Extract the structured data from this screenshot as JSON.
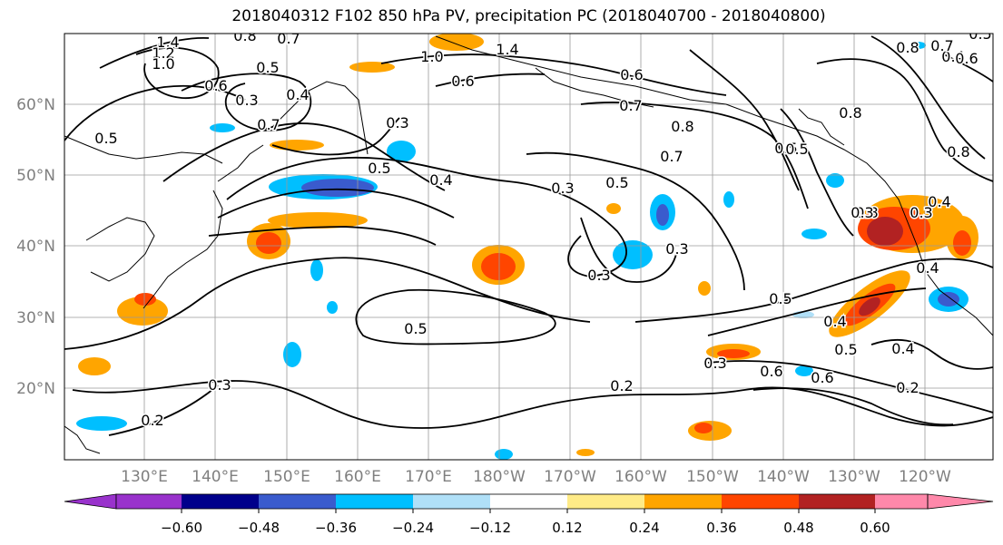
{
  "title": "2018040312 F102 850 hPa PV, precipitation PC (2018040700 - 2018040800)",
  "map": {
    "lon_labels": [
      "130°E",
      "140°E",
      "150°E",
      "160°E",
      "170°E",
      "180°W",
      "170°W",
      "160°W",
      "150°W",
      "140°W",
      "130°W",
      "120°W"
    ],
    "lat_labels": [
      "60°N",
      "50°N",
      "40°N",
      "30°N",
      "20°N"
    ],
    "contour_labels": [
      "1.4",
      "1.2",
      "1.0",
      "0.8",
      "0.7",
      "0.5",
      "0.3",
      "0.4",
      "0.7",
      "0.6",
      "0.5",
      "0.5",
      "0.4",
      "0.3",
      "0.5",
      "0.3",
      "0.3",
      "0.3",
      "0.2",
      "0.2",
      "0.5",
      "0.6",
      "0.7",
      "0.8",
      "0.6",
      "0.4",
      "0.5",
      "0.3",
      "0.2",
      "1.0",
      "1.4",
      "0.6",
      "0.7",
      "0.5",
      "0.4",
      "0.3",
      "0.8",
      "0.4",
      "0.3",
      "0.5",
      "0.6",
      "0.4",
      "0.5",
      "0.8",
      "0.6",
      "0.7",
      "0.8",
      "0.5",
      "0.8",
      "0.4",
      "0.3"
    ]
  },
  "colorbar": {
    "ticks": [
      "−0.60",
      "−0.48",
      "−0.36",
      "−0.24",
      "−0.12",
      "0.12",
      "0.24",
      "0.36",
      "0.48",
      "0.60"
    ],
    "colors": [
      "#9932CC",
      "#00008B",
      "#3A5BCD",
      "#00BFFF",
      "#B0E0F8",
      "#FFFFFF",
      "#FFEB87",
      "#FFA500",
      "#FF4500",
      "#B22222",
      "#FF88AA"
    ]
  }
}
